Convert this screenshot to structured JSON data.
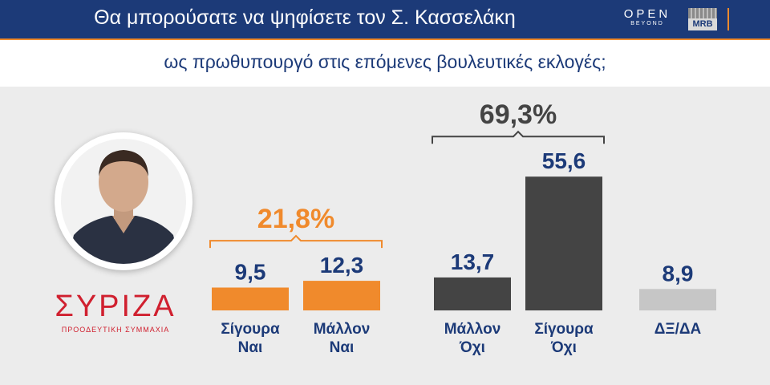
{
  "header": {
    "title": "Θα μπορούσατε να ψηφίσετε τον Σ. Κασσελάκη",
    "subtitle": "ως πρωθυπουργό στις επόμενες βουλευτικές εκλογές;"
  },
  "logos": {
    "open": "OPEN",
    "open_sub": "BEYOND",
    "mrb": "MRB",
    "party": "ΣΥΡΙΖΑ",
    "party_sub": "ΠΡΟΟΔΕΥΤΙΚΗ ΣΥΜΜΑΧΙΑ"
  },
  "colors": {
    "navy": "#1c3a78",
    "orange": "#f08a2c",
    "dark_gray": "#444444",
    "light_gray": "#c6c6c6",
    "party_red": "#d0202f"
  },
  "chart_data": {
    "type": "bar",
    "categories": [
      [
        "Σίγουρα",
        "Ναι"
      ],
      [
        "Μάλλον",
        "Ναι"
      ],
      [
        "Μάλλον",
        "Όχι"
      ],
      [
        "Σίγουρα",
        "Όχι"
      ],
      [
        "ΔΞ/ΔΑ"
      ]
    ],
    "values": [
      9.5,
      12.3,
      13.7,
      55.6,
      8.9
    ],
    "value_labels": [
      "9,5",
      "12,3",
      "13,7",
      "55,6",
      "8,9"
    ],
    "bar_colors": [
      "#f08a2c",
      "#f08a2c",
      "#444444",
      "#444444",
      "#c6c6c6"
    ],
    "value_label_color": "#1c3a78",
    "groups": [
      {
        "label": "21,8%",
        "color": "#f08a2c",
        "from": 0,
        "to": 1
      },
      {
        "label": "69,3%",
        "color": "#444444",
        "from": 2,
        "to": 3
      }
    ],
    "ylim": [
      0,
      60
    ],
    "grid": false,
    "legend": "none"
  }
}
